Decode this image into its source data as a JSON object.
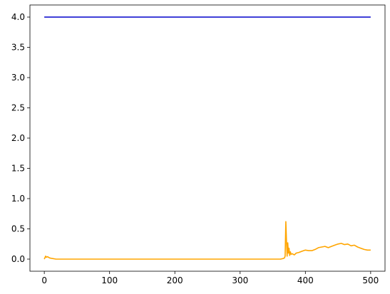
{
  "chart_data": {
    "type": "line",
    "title": "",
    "xlabel": "",
    "ylabel": "",
    "xlim": [
      -22,
      522
    ],
    "ylim": [
      -0.2,
      4.2
    ],
    "grid": false,
    "legend": "none",
    "x_ticks": [
      0,
      100,
      200,
      300,
      400,
      500
    ],
    "x_tick_labels": [
      "0",
      "100",
      "200",
      "300",
      "400",
      "500"
    ],
    "y_ticks": [
      0.0,
      0.5,
      1.0,
      1.5,
      2.0,
      2.5,
      3.0,
      3.5,
      4.0
    ],
    "y_tick_labels": [
      "0.0",
      "0.5",
      "1.0",
      "1.5",
      "2.0",
      "2.5",
      "3.0",
      "3.5",
      "4.0"
    ],
    "series": [
      {
        "color": "#0000cc",
        "x": [
          0,
          500
        ],
        "y": [
          4.0,
          4.0
        ]
      },
      {
        "color": "#ffa500",
        "x": [
          0,
          2,
          3,
          5,
          8,
          12,
          18,
          30,
          100,
          200,
          300,
          350,
          362,
          366,
          368,
          369,
          370,
          371,
          372,
          373,
          374,
          375,
          376,
          377,
          378,
          380,
          383,
          386,
          390,
          395,
          400,
          405,
          410,
          415,
          420,
          425,
          430,
          435,
          440,
          445,
          450,
          455,
          460,
          465,
          470,
          475,
          480,
          485,
          490,
          495,
          500
        ],
        "y": [
          0.0,
          0.05,
          0.03,
          0.04,
          0.02,
          0.01,
          0.0,
          0.0,
          0.0,
          0.0,
          0.0,
          0.0,
          0.0,
          0.01,
          0.02,
          0.05,
          0.62,
          0.3,
          0.05,
          0.27,
          0.1,
          0.18,
          0.06,
          0.12,
          0.08,
          0.09,
          0.07,
          0.1,
          0.11,
          0.13,
          0.15,
          0.14,
          0.14,
          0.16,
          0.19,
          0.2,
          0.21,
          0.19,
          0.21,
          0.23,
          0.25,
          0.26,
          0.24,
          0.25,
          0.22,
          0.23,
          0.2,
          0.18,
          0.16,
          0.15,
          0.15
        ]
      }
    ]
  }
}
